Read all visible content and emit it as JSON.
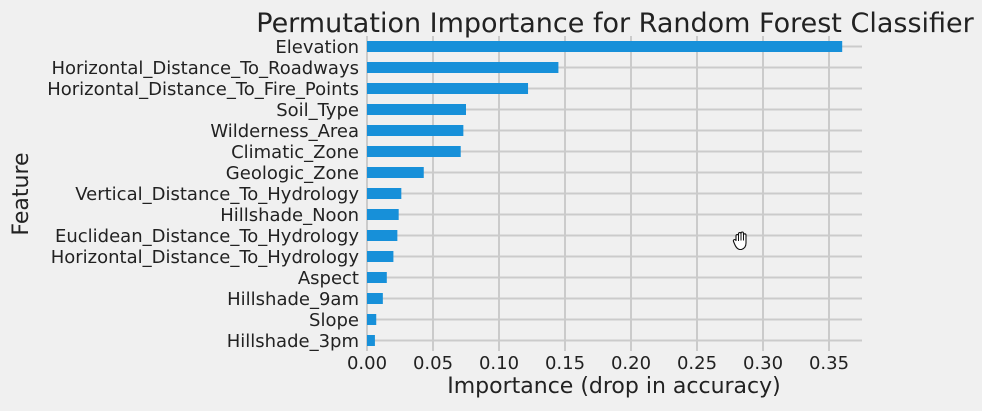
{
  "chart_data": {
    "type": "bar",
    "orientation": "horizontal",
    "title": "Permutation Importance for Random Forest Classifier",
    "xlabel": "Importance (drop in accuracy)",
    "ylabel": "Feature",
    "xlim": [
      0.0,
      0.375
    ],
    "xticks": [
      "0.00",
      "0.05",
      "0.10",
      "0.15",
      "0.20",
      "0.25",
      "0.30",
      "0.35"
    ],
    "grid": true,
    "bar_color": "#1790d9",
    "categories": [
      "Elevation",
      "Horizontal_Distance_To_Roadways",
      "Horizontal_Distance_To_Fire_Points",
      "Soil_Type",
      "Wilderness_Area",
      "Climatic_Zone",
      "Geologic_Zone",
      "Vertical_Distance_To_Hydrology",
      "Hillshade_Noon",
      "Euclidean_Distance_To_Hydrology",
      "Horizontal_Distance_To_Hydrology",
      "Aspect",
      "Hillshade_9am",
      "Slope",
      "Hillshade_3pm"
    ],
    "values": [
      0.36,
      0.145,
      0.122,
      0.075,
      0.073,
      0.071,
      0.043,
      0.026,
      0.024,
      0.023,
      0.02,
      0.015,
      0.012,
      0.007,
      0.006
    ]
  },
  "cursor": {
    "icon": "grab-hand-icon"
  }
}
